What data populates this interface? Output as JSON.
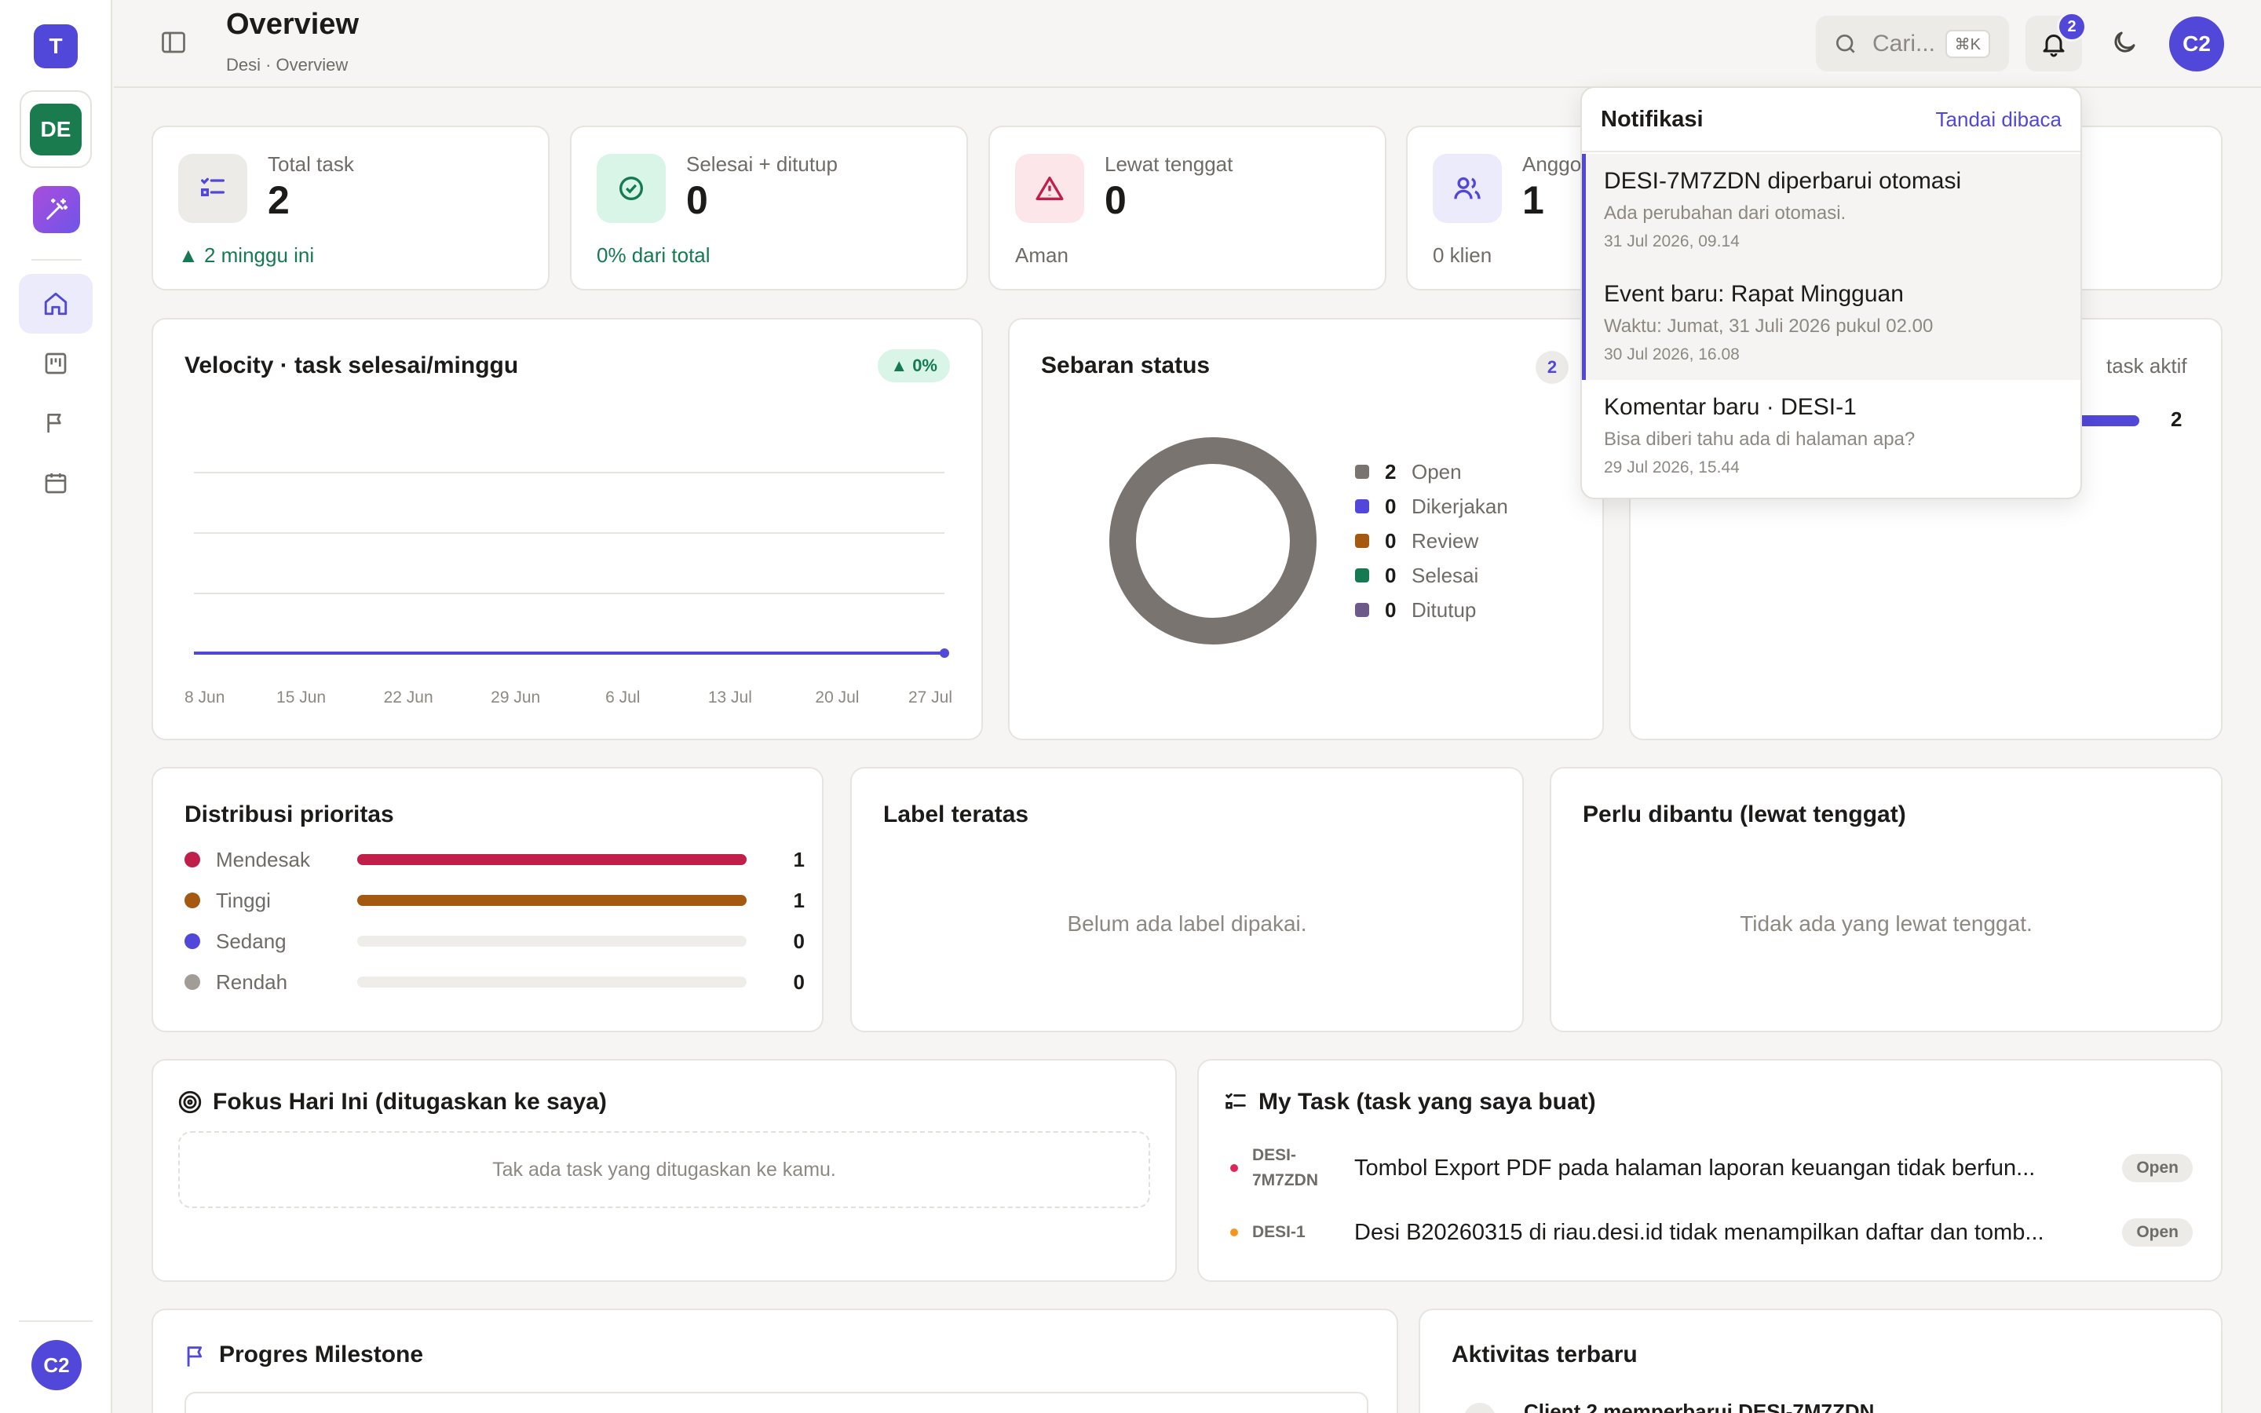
{
  "rail": {
    "workspace_initial": "T",
    "project_initial": "DE",
    "user_initial": "C2"
  },
  "header": {
    "title": "Overview",
    "breadcrumb": "Desi · Overview",
    "search_placeholder": "Cari...",
    "shortcut": "⌘K",
    "notif_count": "2",
    "avatar": "C2"
  },
  "stats": [
    {
      "label": "Total task",
      "value": "2",
      "sub": "▲ 2 minggu ini",
      "icon": "list-check-icon"
    },
    {
      "label": "Selesai + ditutup",
      "value": "0",
      "sub": "0% dari total",
      "icon": "check-circle-icon"
    },
    {
      "label": "Lewat tenggat",
      "value": "0",
      "sub": "Aman",
      "icon": "warning-icon"
    },
    {
      "label": "Anggota",
      "value": "1",
      "sub": "0 klien",
      "icon": "users-icon"
    }
  ],
  "velocity": {
    "title": "Velocity · task selesai/minggu",
    "badge": "▲ 0%",
    "chart_data": {
      "type": "line",
      "x": [
        "8 Jun",
        "15 Jun",
        "22 Jun",
        "29 Jun",
        "6 Jul",
        "13 Jul",
        "20 Jul",
        "27 Jul"
      ],
      "series": [
        {
          "values": [
            0,
            0,
            0,
            0,
            0,
            0,
            0,
            0
          ]
        }
      ],
      "color": "#5147d9"
    }
  },
  "status": {
    "title": "Sebaran status",
    "badge": "2",
    "chart_data": {
      "type": "pie",
      "labels": [
        "Open",
        "Dikerjakan",
        "Review",
        "Selesai",
        "Ditutup"
      ],
      "values": [
        2,
        0,
        0,
        0,
        0
      ],
      "colors": [
        "#7a7470",
        "#5147d9",
        "#a5580f",
        "#157a52",
        "#6e5a8a"
      ]
    }
  },
  "workload": {
    "label": "task aktif",
    "value": "2"
  },
  "priority": {
    "title": "Distribusi prioritas",
    "items": [
      {
        "name": "Mendesak",
        "value": "1",
        "fraction": 1,
        "color": "#c01f4a"
      },
      {
        "name": "Tinggi",
        "value": "1",
        "fraction": 1,
        "color": "#a5580f"
      },
      {
        "name": "Sedang",
        "value": "0",
        "fraction": 0,
        "color": "#5147d9"
      },
      {
        "name": "Rendah",
        "value": "0",
        "fraction": 0,
        "color": "#a19c96"
      }
    ]
  },
  "labels_card": {
    "title": "Label teratas",
    "empty": "Belum ada label dipakai."
  },
  "overdue_card": {
    "title": "Perlu dibantu (lewat tenggat)",
    "empty": "Tidak ada yang lewat tenggat."
  },
  "focus": {
    "title": "Fokus Hari Ini (ditugaskan ke saya)",
    "empty": "Tak ada task yang ditugaskan ke kamu."
  },
  "mytask": {
    "title": "My Task (task yang saya buat)",
    "items": [
      {
        "id_line1": "DESI-",
        "id_line2": "7M7ZDN",
        "title": "Tombol Export PDF pada halaman laporan keuangan tidak berfun...",
        "status": "Open",
        "color": "#e0245e"
      },
      {
        "id_line1": "DESI-1",
        "id_line2": "",
        "title": "Desi B20260315 di riau.desi.id tidak menampilkan daftar dan tomb...",
        "status": "Open",
        "color": "#f5961f"
      }
    ]
  },
  "milestone": {
    "title": "Progres Milestone"
  },
  "activity": {
    "title": "Aktivitas terbaru",
    "partial": "Client 2 memperbarui DESI-7M7ZDN"
  },
  "notifications": {
    "title": "Notifikasi",
    "mark_read": "Tandai dibaca",
    "items": [
      {
        "title": "DESI-7M7ZDN diperbarui otomasi",
        "body": "Ada perubahan dari otomasi.",
        "time": "31 Jul 2026, 09.14"
      },
      {
        "title": "Event baru: Rapat Mingguan",
        "body": "Waktu: Jumat, 31 Juli 2026 pukul 02.00",
        "time": "30 Jul 2026, 16.08"
      },
      {
        "title": "Komentar baru · DESI-1",
        "body": "Bisa diberi tahu ada di halaman apa?",
        "time": "29 Jul 2026, 15.44"
      }
    ]
  }
}
